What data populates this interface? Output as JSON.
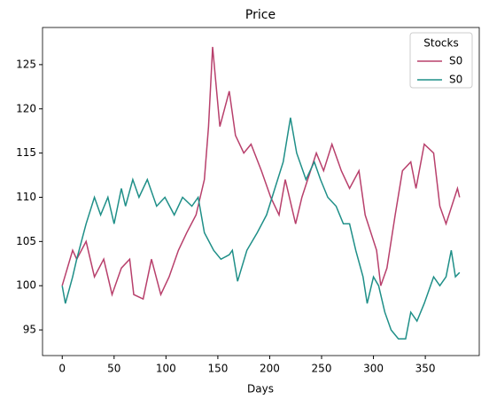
{
  "chart_data": {
    "type": "line",
    "title": "Price",
    "xlabel": "Days",
    "legend_title": "Stocks",
    "legend_position": "upper right",
    "xlim": [
      -19,
      402
    ],
    "ylim": [
      92.1,
      129.2
    ],
    "xticks": [
      0,
      50,
      100,
      150,
      200,
      250,
      300,
      350
    ],
    "yticks": [
      95,
      100,
      105,
      110,
      115,
      120,
      125
    ],
    "series": [
      {
        "name": "S0",
        "color": "#b8406c",
        "x": [
          0,
          10,
          14,
          23,
          31,
          40,
          48,
          57,
          65,
          69,
          78,
          86,
          95,
          103,
          112,
          120,
          129,
          137,
          141,
          145,
          152,
          161,
          167,
          175,
          182,
          192,
          201,
          209,
          215,
          225,
          231,
          245,
          252,
          260,
          269,
          277,
          286,
          292,
          303,
          307,
          313,
          321,
          328,
          336,
          341,
          349,
          358,
          364,
          370,
          381,
          383
        ],
        "values": [
          100,
          104,
          103,
          105,
          101,
          103,
          99,
          102,
          103,
          99,
          98.5,
          103,
          99,
          101,
          104,
          106,
          108,
          112,
          118,
          127,
          118,
          122,
          117,
          115,
          116,
          113,
          110,
          108,
          112,
          107,
          110,
          115,
          113,
          116,
          113,
          111,
          113,
          108,
          104,
          100,
          102,
          108,
          113,
          114,
          111,
          116,
          115,
          109,
          107,
          111,
          110
        ]
      },
      {
        "name": "S0",
        "color": "#1f8f88",
        "x": [
          0,
          3,
          10,
          14,
          23,
          31,
          37,
          44,
          50,
          57,
          61,
          68,
          74,
          82,
          91,
          99,
          108,
          116,
          125,
          131,
          137,
          146,
          153,
          161,
          164,
          169,
          178,
          188,
          197,
          205,
          213,
          220,
          226,
          235,
          243,
          249,
          256,
          264,
          271,
          277,
          283,
          290,
          294,
          300,
          305,
          311,
          317,
          324,
          331,
          336,
          342,
          349,
          358,
          364,
          370,
          375,
          379,
          383
        ],
        "values": [
          100,
          98,
          101,
          103,
          107,
          110,
          108,
          110,
          107,
          111,
          109,
          112,
          110,
          112,
          109,
          110,
          108,
          110,
          109,
          110,
          106,
          104,
          103,
          103.5,
          104,
          100.5,
          104,
          106,
          108,
          111,
          114,
          119,
          115,
          112,
          114,
          112,
          110,
          109,
          107,
          107,
          104,
          101,
          98,
          101,
          100,
          97,
          95,
          94,
          94,
          97,
          96,
          98,
          101,
          100,
          101,
          104,
          101,
          101.5
        ]
      }
    ]
  }
}
